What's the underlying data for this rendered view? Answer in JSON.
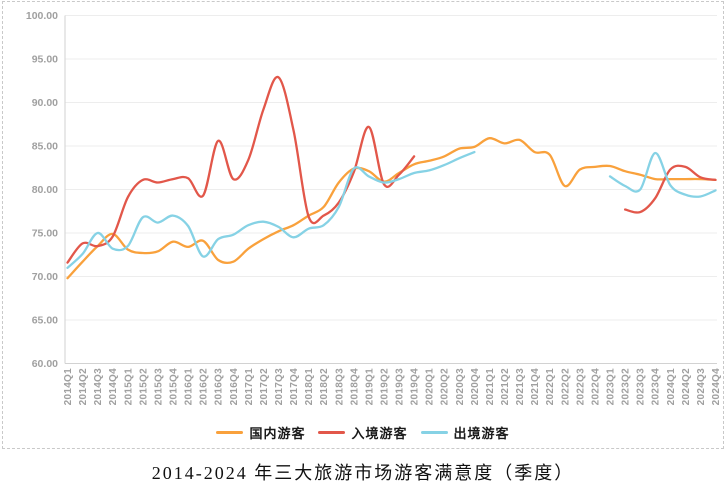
{
  "chart_data": {
    "type": "line",
    "title": "2014-2024 年三大旅游市场游客满意度（季度）",
    "ylim": [
      60,
      100
    ],
    "ytick_step": 5,
    "ytick_decimals": 2,
    "grid": true,
    "legend_position": "bottom",
    "categories": [
      "2014Q1",
      "2014Q2",
      "2014Q3",
      "2014Q4",
      "2015Q1",
      "2015Q2",
      "2015Q3",
      "2015Q4",
      "2016Q1",
      "2016Q2",
      "2016Q3",
      "2016Q4",
      "2017Q1",
      "2017Q2",
      "2017Q3",
      "2017Q4",
      "2018Q1",
      "2018Q2",
      "2018Q3",
      "2018Q4",
      "2019Q1",
      "2019Q2",
      "2019Q3",
      "2019Q4",
      "2020Q1",
      "2020Q2",
      "2020Q3",
      "2020Q4",
      "2021Q1",
      "2021Q2",
      "2021Q3",
      "2021Q4",
      "2022Q1",
      "2022Q2",
      "2022Q3",
      "2022Q4",
      "2023Q1",
      "2023Q2",
      "2023Q3",
      "2023Q4",
      "2024Q1",
      "2024Q2",
      "2024Q3",
      "2024Q4"
    ],
    "series": [
      {
        "key": "domestic",
        "name": "国内游客",
        "color": "#F9A13C",
        "values": [
          69.8,
          71.7,
          73.5,
          74.9,
          73.1,
          72.7,
          72.9,
          74.0,
          73.4,
          74.1,
          71.9,
          71.7,
          73.2,
          74.3,
          75.2,
          75.9,
          77.0,
          78.0,
          80.8,
          82.4,
          82.1,
          80.9,
          81.9,
          82.9,
          83.3,
          83.8,
          84.7,
          84.9,
          85.9,
          85.3,
          85.7,
          84.3,
          84.0,
          80.4,
          82.3,
          82.6,
          82.7,
          82.1,
          81.7,
          81.2,
          81.2,
          81.2,
          81.2,
          81.1
        ]
      },
      {
        "key": "inbound",
        "name": "入境游客",
        "color": "#E2574A",
        "values": [
          71.6,
          73.8,
          73.5,
          74.6,
          79.1,
          81.1,
          80.8,
          81.2,
          81.3,
          79.3,
          85.6,
          81.2,
          83.4,
          89.2,
          92.9,
          86.8,
          76.9,
          77.0,
          78.5,
          82.0,
          87.2,
          80.6,
          81.7,
          83.8,
          null,
          null,
          null,
          null,
          null,
          null,
          null,
          null,
          null,
          null,
          null,
          null,
          null,
          77.7,
          77.4,
          79.0,
          82.3,
          82.6,
          81.4,
          81.1
        ]
      },
      {
        "key": "outbound",
        "name": "出境游客",
        "color": "#86D2E5",
        "values": [
          71.0,
          72.6,
          75.0,
          73.2,
          73.5,
          76.8,
          76.2,
          77.0,
          75.8,
          72.3,
          74.3,
          74.8,
          75.9,
          76.3,
          75.7,
          74.5,
          75.5,
          75.9,
          78.0,
          82.4,
          81.5,
          80.8,
          81.2,
          81.9,
          82.2,
          82.8,
          83.6,
          84.3,
          null,
          null,
          null,
          null,
          null,
          null,
          null,
          null,
          81.5,
          80.4,
          80.0,
          84.2,
          80.5,
          79.4,
          79.2,
          79.9
        ]
      }
    ],
    "style": {
      "grid_color": "#ededed",
      "axis_color": "#d2d2d2",
      "tick_label_color": "#a0a0a0"
    }
  }
}
